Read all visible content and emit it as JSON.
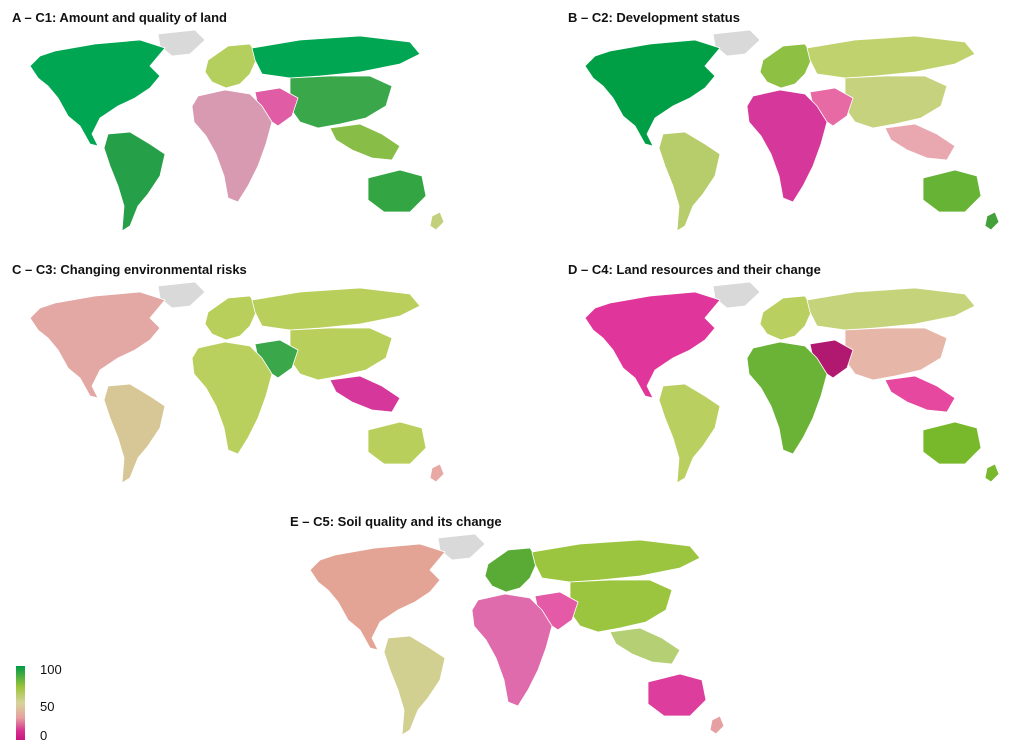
{
  "panels": [
    {
      "id": "A",
      "title": "A – C1: Amount and quality of land",
      "colors": {
        "na": "#00a651",
        "sa": "#26a048",
        "eu": "#b4cf5d",
        "af": "#d79ab0",
        "me": "#e05ca5",
        "ru": "#00a651",
        "asia": "#3aa84a",
        "sea": "#88bd47",
        "au": "#33a543",
        "greenland": "#d9d9d9",
        "nz": "#c3d07b"
      }
    },
    {
      "id": "B",
      "title": "B – C2: Development status",
      "colors": {
        "na": "#009f45",
        "sa": "#b7cc6a",
        "eu": "#8ec043",
        "af": "#d6379a",
        "me": "#e86aa4",
        "ru": "#c0d26e",
        "asia": "#c7d27f",
        "sea": "#e9a8b0",
        "au": "#67b336",
        "greenland": "#d9d9d9",
        "nz": "#43a03a"
      }
    },
    {
      "id": "C",
      "title": "C – C3: Changing environmental risks",
      "colors": {
        "na": "#e3a8a3",
        "sa": "#d7c797",
        "eu": "#b8cf5b",
        "af": "#b9d05f",
        "me": "#3aa84a",
        "ru": "#b8cf5b",
        "asia": "#b8cf5b",
        "sea": "#d6379a",
        "au": "#b8cf5b",
        "greenland": "#d9d9d9",
        "nz": "#e8a8a3"
      }
    },
    {
      "id": "D",
      "title": "D – C4: Land resources and their change",
      "colors": {
        "na": "#e0369b",
        "sa": "#b9cf60",
        "eu": "#b9cf60",
        "af": "#6ab336",
        "me": "#b1186f",
        "ru": "#c5d37a",
        "asia": "#e6b6a8",
        "sea": "#e5489e",
        "au": "#78b82b",
        "greenland": "#d9d9d9",
        "nz": "#78b82b"
      }
    },
    {
      "id": "E",
      "title": "E – C5: Soil quality and its change",
      "colors": {
        "na": "#e3a495",
        "sa": "#d2d090",
        "eu": "#5aab36",
        "af": "#df6aac",
        "me": "#e55aa6",
        "ru": "#9cc53f",
        "asia": "#9cc53f",
        "sea": "#b5d074",
        "au": "#dd3d9c",
        "greenland": "#d9d9d9",
        "nz": "#e6a0a3"
      }
    }
  ],
  "legend": {
    "max_label": "100",
    "mid_label": "50",
    "min_label": "0"
  }
}
